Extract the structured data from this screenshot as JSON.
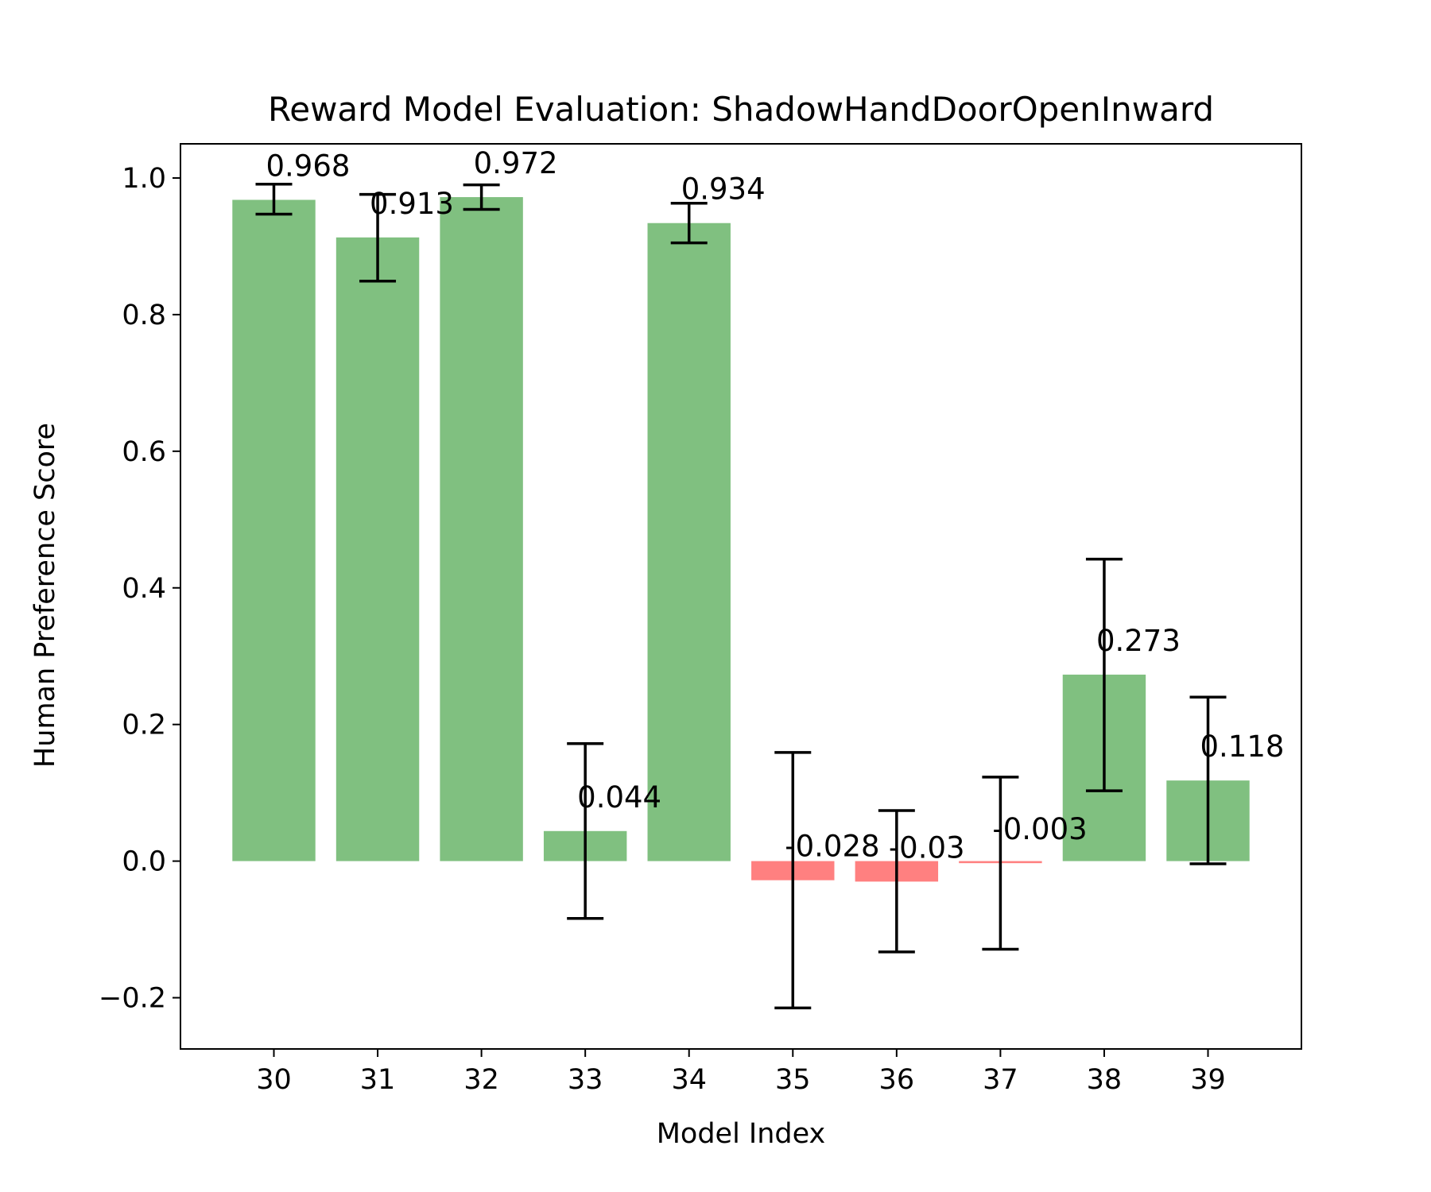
{
  "chart_data": {
    "type": "bar",
    "title": "Reward Model Evaluation: ShadowHandDoorOpenInward",
    "xlabel": "Model Index",
    "ylabel": "Human Preference Score",
    "categories": [
      "30",
      "31",
      "32",
      "33",
      "34",
      "35",
      "36",
      "37",
      "38",
      "39"
    ],
    "values": [
      0.968,
      0.913,
      0.972,
      0.044,
      0.934,
      -0.028,
      -0.03,
      -0.003,
      0.273,
      0.118
    ],
    "value_labels": [
      "0.968",
      "0.913",
      "0.972",
      "0.044",
      "0.934",
      "-0.028",
      "-0.03",
      "-0.003",
      "0.273",
      "0.118"
    ],
    "error_low": [
      0.947,
      0.849,
      0.954,
      -0.084,
      0.905,
      -0.215,
      -0.133,
      -0.129,
      0.103,
      -0.004
    ],
    "error_high": [
      0.991,
      0.976,
      0.99,
      0.172,
      0.963,
      0.159,
      0.074,
      0.123,
      0.442,
      0.24
    ],
    "ylim": [
      -0.275,
      1.05
    ],
    "yticks": [
      -0.2,
      0.0,
      0.2,
      0.4,
      0.6,
      0.8,
      1.0
    ],
    "ytick_labels": [
      "−0.2",
      "0.0",
      "0.2",
      "0.4",
      "0.6",
      "0.8",
      "1.0"
    ],
    "positive_color": "#80c080",
    "negative_color": "#ff8080",
    "errorbar_color": "#000000",
    "grid": false,
    "legend": "none"
  }
}
